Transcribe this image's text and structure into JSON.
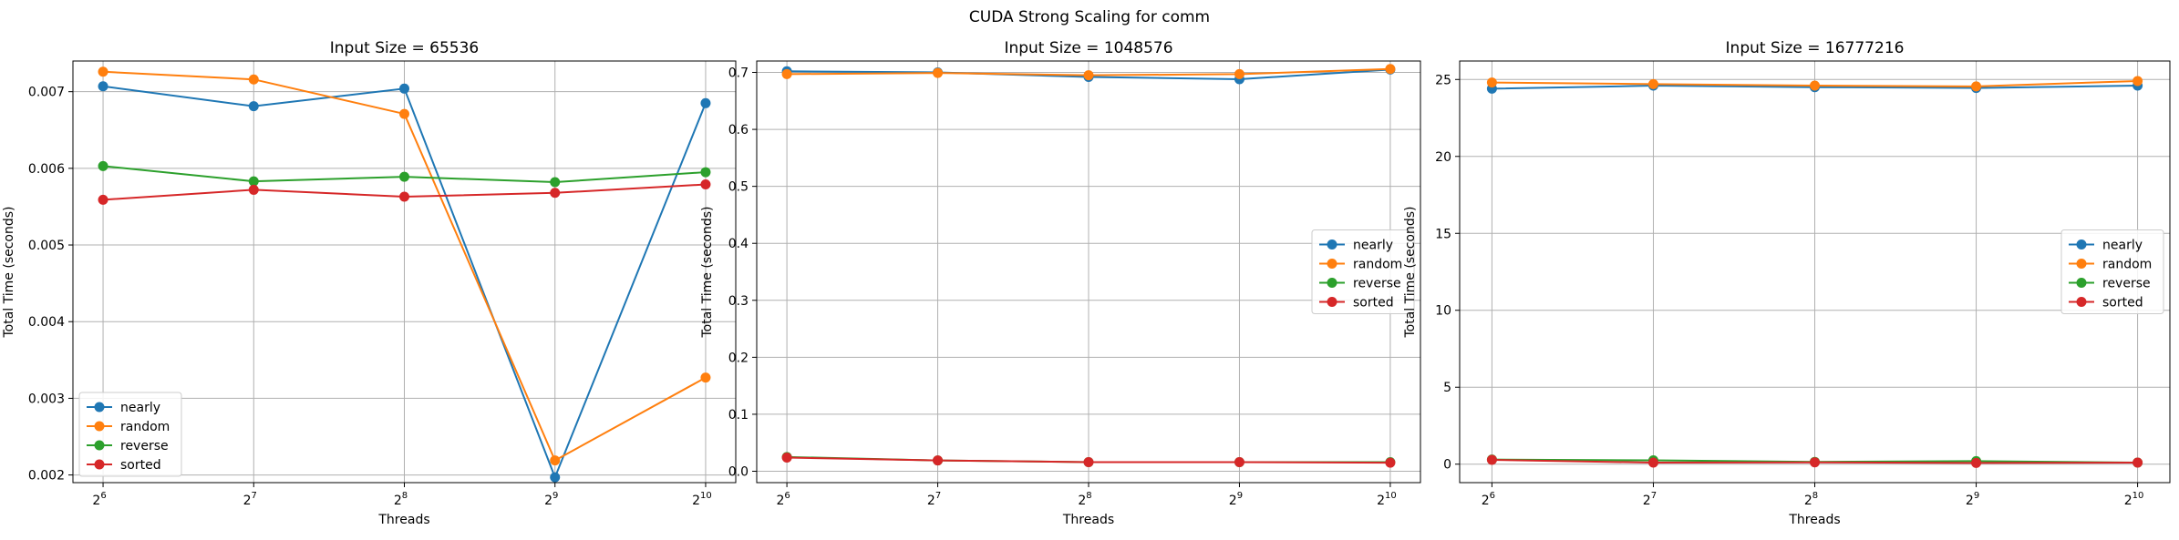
{
  "figure": {
    "suptitle": "CUDA Strong Scaling for comm"
  },
  "colors": {
    "nearly": "#1f77b4",
    "random": "#ff7f0e",
    "reverse": "#2ca02c",
    "sorted": "#d62728"
  },
  "chart_data": [
    {
      "type": "line",
      "title": "Input Size = 65536",
      "xlabel": "Threads",
      "ylabel": "Total Time (seconds)",
      "x_scale": "log2",
      "x": [
        64,
        128,
        256,
        512,
        1024
      ],
      "x_tick_base": "2",
      "x_tick_exps": [
        "6",
        "7",
        "8",
        "9",
        "10"
      ],
      "ylim": [
        0.0019,
        0.0074
      ],
      "yticks": [
        0.002,
        0.003,
        0.004,
        0.005,
        0.006,
        0.007
      ],
      "ytick_labels": [
        "0.002",
        "0.003",
        "0.004",
        "0.005",
        "0.006",
        "0.007"
      ],
      "grid": true,
      "legend": "lower-left",
      "series": [
        {
          "name": "nearly",
          "values": [
            0.00707,
            0.00681,
            0.00704,
            0.00197,
            0.00685
          ]
        },
        {
          "name": "random",
          "values": [
            0.00726,
            0.00716,
            0.00671,
            0.00219,
            0.00327
          ]
        },
        {
          "name": "reverse",
          "values": [
            0.00603,
            0.00583,
            0.00589,
            0.00582,
            0.00595
          ]
        },
        {
          "name": "sorted",
          "values": [
            0.00559,
            0.00572,
            0.00563,
            0.00568,
            0.00579
          ]
        }
      ]
    },
    {
      "type": "line",
      "title": "Input Size = 1048576",
      "xlabel": "Threads",
      "ylabel": "Total Time (seconds)",
      "x_scale": "log2",
      "x": [
        64,
        128,
        256,
        512,
        1024
      ],
      "x_tick_base": "2",
      "x_tick_exps": [
        "6",
        "7",
        "8",
        "9",
        "10"
      ],
      "ylim": [
        -0.02,
        0.72
      ],
      "yticks": [
        0,
        0.1,
        0.2,
        0.3,
        0.4,
        0.5,
        0.6,
        0.7
      ],
      "ytick_labels": [
        "0.0",
        "0.1",
        "0.2",
        "0.3",
        "0.4",
        "0.5",
        "0.6",
        "0.7"
      ],
      "grid": true,
      "legend": "center-right",
      "series": [
        {
          "name": "nearly",
          "values": [
            0.702,
            0.7,
            0.692,
            0.688,
            0.705
          ]
        },
        {
          "name": "random",
          "values": [
            0.697,
            0.699,
            0.695,
            0.697,
            0.706
          ]
        },
        {
          "name": "reverse",
          "values": [
            0.025,
            0.019,
            0.016,
            0.016,
            0.016
          ]
        },
        {
          "name": "sorted",
          "values": [
            0.024,
            0.019,
            0.016,
            0.016,
            0.015
          ]
        }
      ]
    },
    {
      "type": "line",
      "title": "Input Size = 16777216",
      "xlabel": "Threads",
      "ylabel": "Total Time (seconds)",
      "x_scale": "log2",
      "x": [
        64,
        128,
        256,
        512,
        1024
      ],
      "x_tick_base": "2",
      "x_tick_exps": [
        "6",
        "7",
        "8",
        "9",
        "10"
      ],
      "ylim": [
        -1.2,
        26.2
      ],
      "yticks": [
        0,
        5,
        10,
        15,
        20,
        25
      ],
      "ytick_labels": [
        "0",
        "5",
        "10",
        "15",
        "20",
        "25"
      ],
      "grid": true,
      "legend": "center-right",
      "series": [
        {
          "name": "nearly",
          "values": [
            24.4,
            24.6,
            24.5,
            24.45,
            24.6
          ]
        },
        {
          "name": "random",
          "values": [
            24.8,
            24.7,
            24.6,
            24.55,
            24.9
          ]
        },
        {
          "name": "reverse",
          "values": [
            0.3,
            0.25,
            0.15,
            0.2,
            0.1
          ]
        },
        {
          "name": "sorted",
          "values": [
            0.28,
            0.1,
            0.12,
            0.08,
            0.1
          ]
        }
      ]
    }
  ]
}
